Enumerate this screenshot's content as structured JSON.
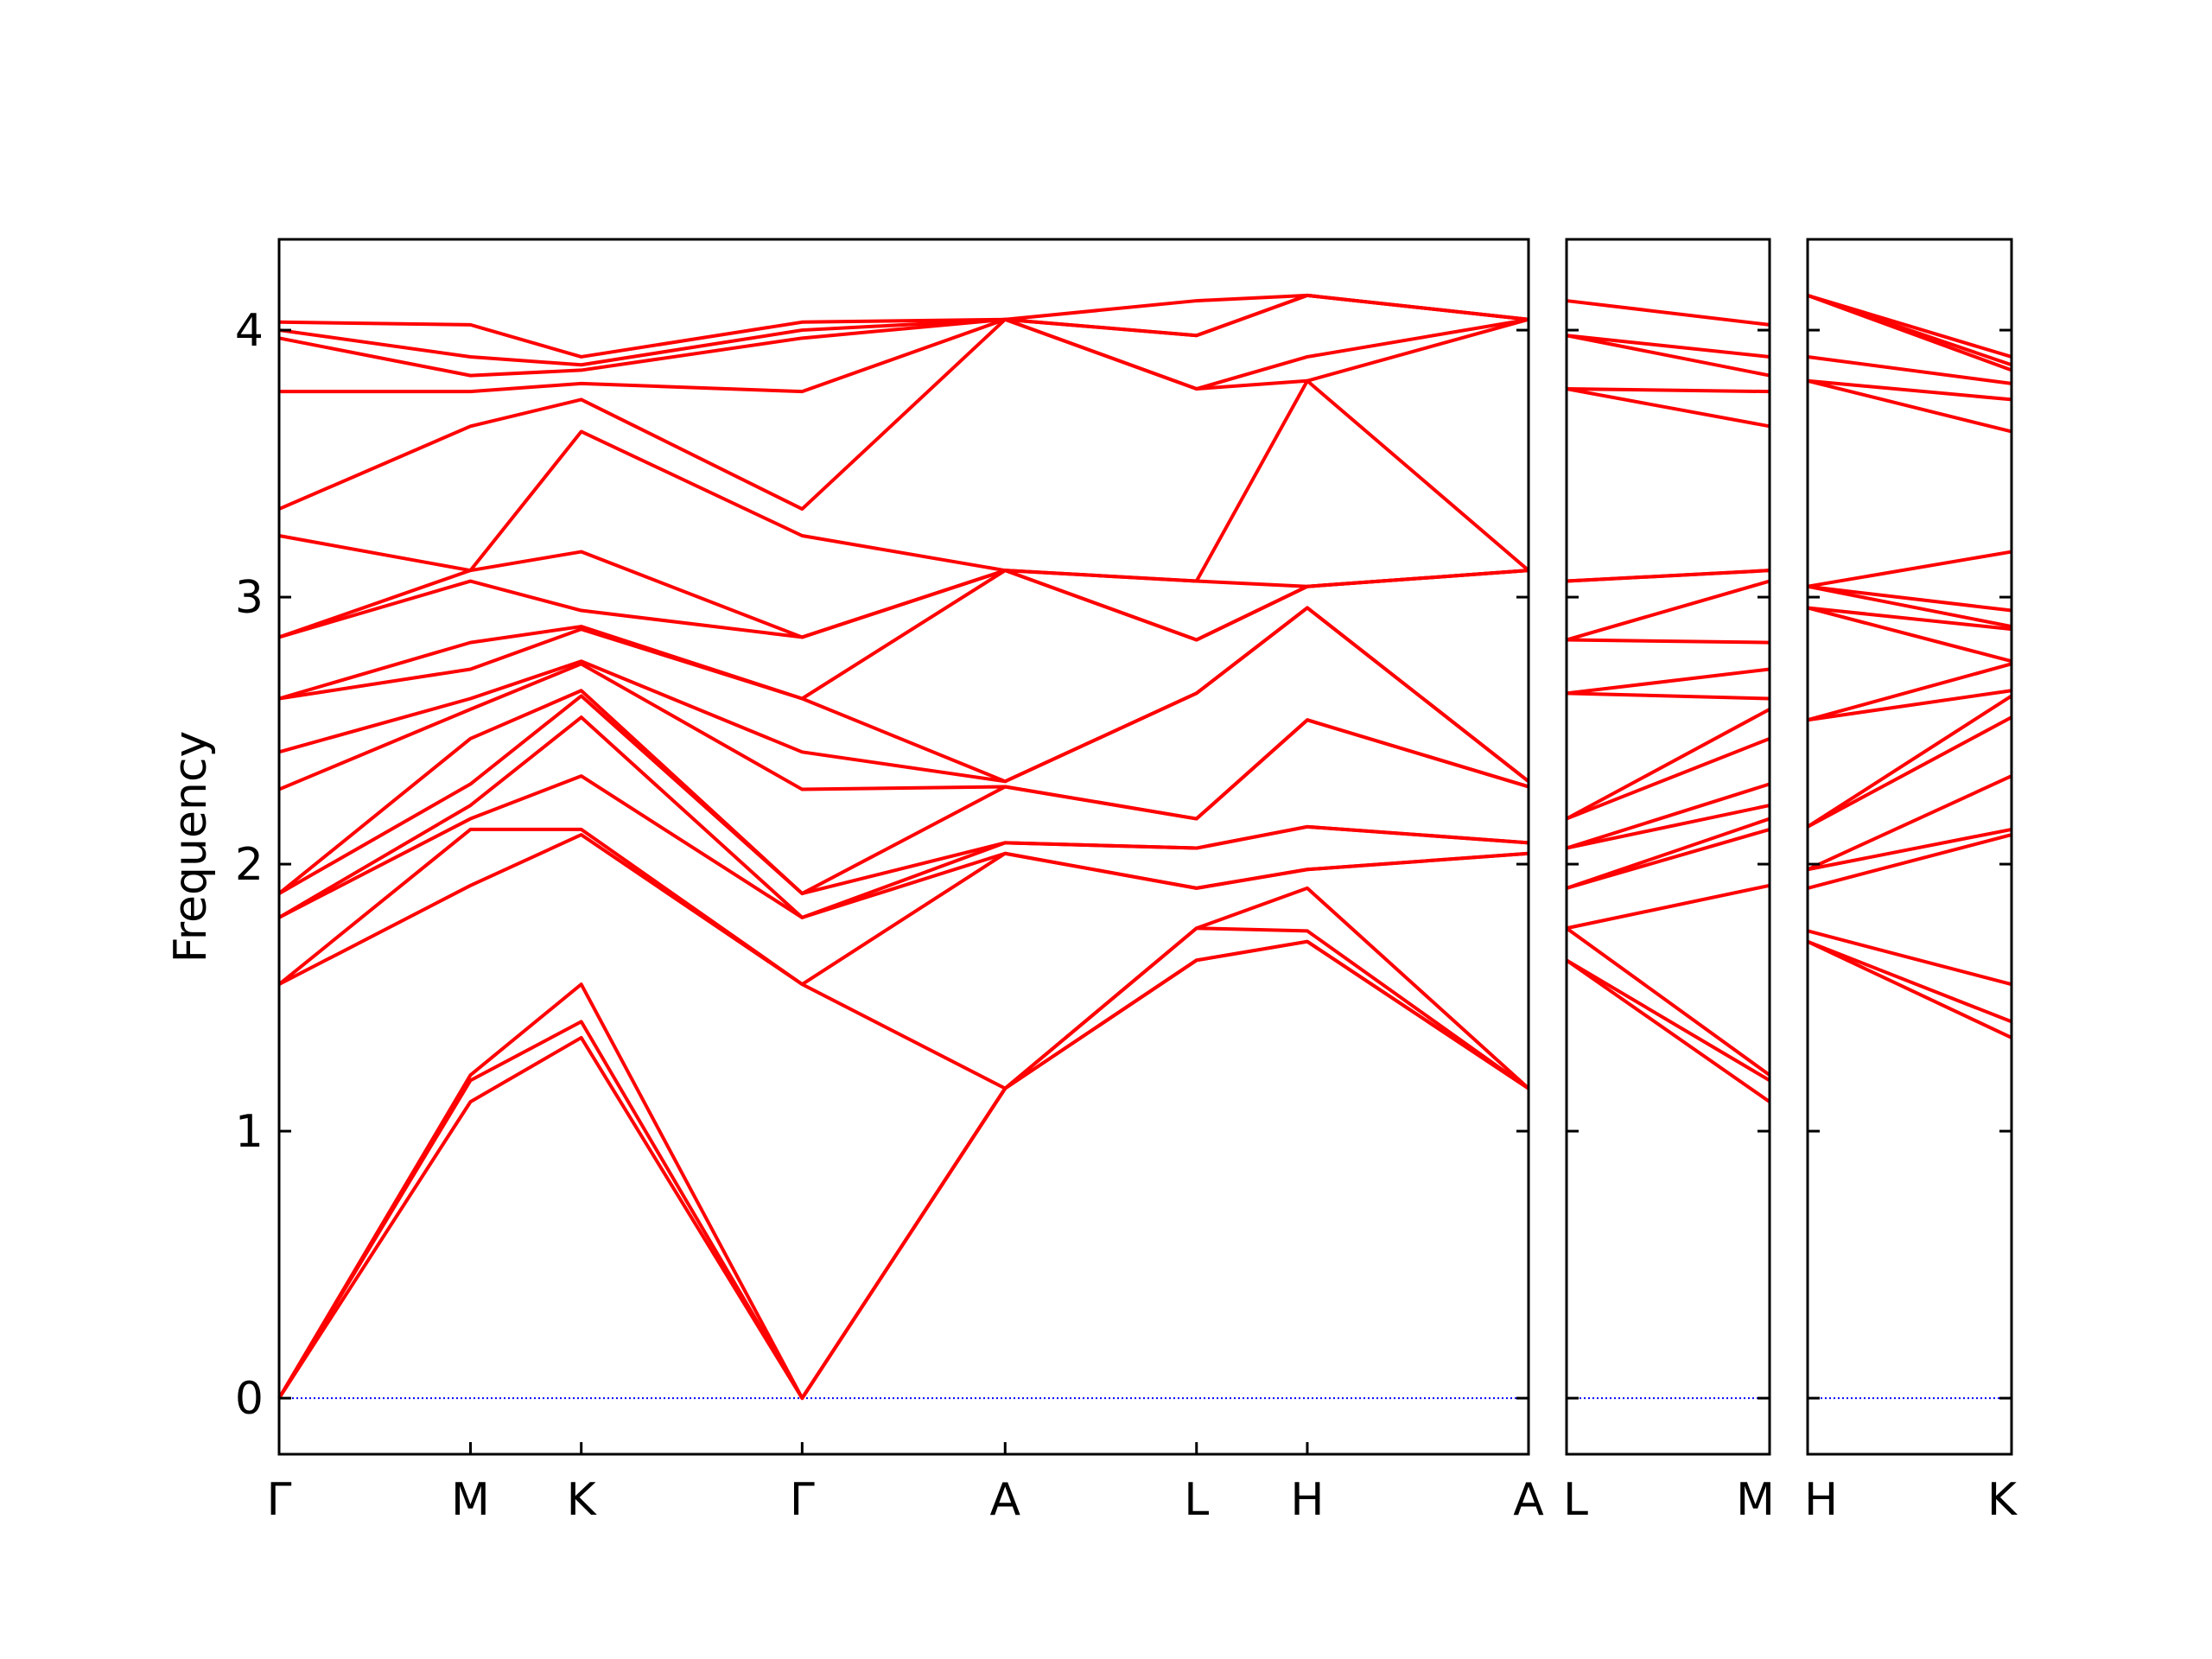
{
  "chart_data": [
    {
      "type": "line",
      "y_label": "Frequency",
      "color": "#ff0000",
      "hline": 0,
      "hline_color": "#0000ff",
      "show_ytick_labels": true,
      "x": [
        0,
        0.577,
        0.911,
        1.577,
        2.189,
        2.766,
        3.1,
        3.767
      ],
      "xlim": [
        0,
        3.767
      ],
      "ylim": [
        -0.21,
        4.34
      ],
      "xticks": [
        {
          "value": 0,
          "label": "Γ"
        },
        {
          "value": 0.577,
          "label": "M"
        },
        {
          "value": 0.911,
          "label": "K"
        },
        {
          "value": 1.577,
          "label": "Γ"
        },
        {
          "value": 2.189,
          "label": "A"
        },
        {
          "value": 2.766,
          "label": "L"
        },
        {
          "value": 3.1,
          "label": "H"
        },
        {
          "value": 3.767,
          "label": "A"
        }
      ],
      "yticks": [
        0,
        1,
        2,
        3,
        4
      ],
      "series": [
        {
          "values": [
            0,
            1.11,
            1.35,
            0,
            1.16,
            1.64,
            1.71,
            1.16
          ]
        },
        {
          "values": [
            0,
            1.19,
            1.41,
            0,
            1.16,
            1.64,
            1.71,
            1.16
          ]
        },
        {
          "values": [
            0,
            1.21,
            1.55,
            0,
            1.16,
            1.76,
            1.75,
            1.16
          ]
        },
        {
          "values": [
            1.55,
            1.92,
            2.11,
            1.55,
            1.16,
            1.76,
            1.91,
            1.16
          ]
        },
        {
          "values": [
            1.55,
            2.13,
            2.13,
            1.55,
            2.04,
            1.91,
            1.98,
            2.04
          ]
        },
        {
          "values": [
            1.8,
            2.17,
            2.33,
            1.8,
            2.04,
            1.91,
            1.98,
            2.04
          ]
        },
        {
          "values": [
            1.8,
            2.22,
            2.55,
            1.8,
            2.08,
            2.06,
            2.14,
            2.08
          ]
        },
        {
          "values": [
            1.89,
            2.3,
            2.63,
            1.89,
            2.08,
            2.06,
            2.14,
            2.08
          ]
        },
        {
          "values": [
            1.89,
            2.47,
            2.65,
            1.89,
            2.29,
            2.17,
            2.54,
            2.29
          ]
        },
        {
          "values": [
            2.28,
            2.58,
            2.75,
            2.28,
            2.29,
            2.17,
            2.54,
            2.29
          ]
        },
        {
          "values": [
            2.42,
            2.62,
            2.76,
            2.42,
            2.31,
            2.64,
            2.96,
            2.31
          ]
        },
        {
          "values": [
            2.62,
            2.73,
            2.88,
            2.62,
            2.31,
            2.64,
            2.96,
            2.31
          ]
        },
        {
          "values": [
            2.62,
            2.83,
            2.89,
            2.62,
            3.1,
            2.84,
            3.04,
            3.1
          ]
        },
        {
          "values": [
            2.85,
            3.06,
            2.95,
            2.85,
            3.1,
            2.84,
            3.04,
            3.1
          ]
        },
        {
          "values": [
            2.85,
            3.1,
            3.17,
            2.85,
            3.1,
            3.06,
            3.04,
            3.1
          ]
        },
        {
          "values": [
            3.23,
            3.1,
            3.62,
            3.23,
            3.1,
            3.06,
            3.81,
            3.1
          ]
        },
        {
          "values": [
            3.33,
            3.64,
            3.74,
            3.33,
            4.04,
            3.78,
            3.81,
            4.04
          ]
        },
        {
          "values": [
            3.77,
            3.77,
            3.8,
            3.77,
            4.04,
            3.78,
            3.9,
            4.04
          ]
        },
        {
          "values": [
            3.97,
            3.83,
            3.85,
            3.97,
            4.04,
            3.98,
            4.13,
            4.04
          ]
        },
        {
          "values": [
            4.0,
            3.9,
            3.87,
            4.0,
            4.04,
            3.98,
            4.13,
            4.04
          ]
        },
        {
          "values": [
            4.03,
            4.02,
            3.9,
            4.03,
            4.04,
            4.11,
            4.13,
            4.04
          ]
        }
      ]
    },
    {
      "type": "line",
      "color": "#ff0000",
      "hline": 0,
      "hline_color": "#0000ff",
      "show_ytick_labels": false,
      "x": [
        0,
        0.612
      ],
      "xlim": [
        0,
        0.612
      ],
      "ylim": [
        -0.21,
        4.34
      ],
      "xticks": [
        {
          "value": 0,
          "label": "L"
        },
        {
          "value": 0.612,
          "label": "M"
        }
      ],
      "yticks": [
        0,
        1,
        2,
        3,
        4
      ],
      "series": [
        {
          "values": [
            1.64,
            1.11
          ]
        },
        {
          "values": [
            1.64,
            1.19
          ]
        },
        {
          "values": [
            1.76,
            1.21
          ]
        },
        {
          "values": [
            1.76,
            1.92
          ]
        },
        {
          "values": [
            1.91,
            2.13
          ]
        },
        {
          "values": [
            1.91,
            2.17
          ]
        },
        {
          "values": [
            2.06,
            2.22
          ]
        },
        {
          "values": [
            2.06,
            2.3
          ]
        },
        {
          "values": [
            2.17,
            2.47
          ]
        },
        {
          "values": [
            2.17,
            2.58
          ]
        },
        {
          "values": [
            2.64,
            2.62
          ]
        },
        {
          "values": [
            2.64,
            2.73
          ]
        },
        {
          "values": [
            2.84,
            2.83
          ]
        },
        {
          "values": [
            2.84,
            3.06
          ]
        },
        {
          "values": [
            3.06,
            3.1
          ]
        },
        {
          "values": [
            3.06,
            3.1
          ]
        },
        {
          "values": [
            3.78,
            3.64
          ]
        },
        {
          "values": [
            3.78,
            3.77
          ]
        },
        {
          "values": [
            3.98,
            3.83
          ]
        },
        {
          "values": [
            3.98,
            3.9
          ]
        },
        {
          "values": [
            4.11,
            4.02
          ]
        }
      ]
    },
    {
      "type": "line",
      "color": "#ff0000",
      "hline": 0,
      "hline_color": "#0000ff",
      "show_ytick_labels": false,
      "x": [
        0,
        0.612
      ],
      "xlim": [
        0,
        0.612
      ],
      "ylim": [
        -0.21,
        4.34
      ],
      "xticks": [
        {
          "value": 0,
          "label": "H"
        },
        {
          "value": 0.612,
          "label": "K"
        }
      ],
      "yticks": [
        0,
        1,
        2,
        3,
        4
      ],
      "series": [
        {
          "values": [
            1.71,
            1.35
          ]
        },
        {
          "values": [
            1.71,
            1.41
          ]
        },
        {
          "values": [
            1.75,
            1.55
          ]
        },
        {
          "values": [
            1.91,
            2.11
          ]
        },
        {
          "values": [
            1.98,
            2.13
          ]
        },
        {
          "values": [
            1.98,
            2.33
          ]
        },
        {
          "values": [
            2.14,
            2.55
          ]
        },
        {
          "values": [
            2.14,
            2.63
          ]
        },
        {
          "values": [
            2.54,
            2.65
          ]
        },
        {
          "values": [
            2.54,
            2.75
          ]
        },
        {
          "values": [
            2.96,
            2.76
          ]
        },
        {
          "values": [
            2.96,
            2.88
          ]
        },
        {
          "values": [
            3.04,
            2.89
          ]
        },
        {
          "values": [
            3.04,
            2.95
          ]
        },
        {
          "values": [
            3.04,
            3.17
          ]
        },
        {
          "values": [
            3.81,
            3.62
          ]
        },
        {
          "values": [
            3.81,
            3.74
          ]
        },
        {
          "values": [
            3.9,
            3.8
          ]
        },
        {
          "values": [
            4.13,
            3.85
          ]
        },
        {
          "values": [
            4.13,
            3.87
          ]
        },
        {
          "values": [
            4.13,
            3.9
          ]
        }
      ]
    }
  ]
}
